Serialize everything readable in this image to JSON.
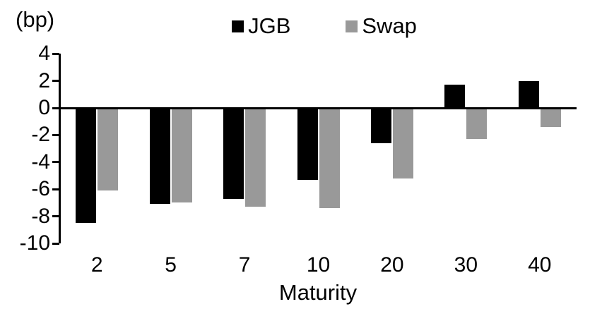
{
  "chart_data": {
    "type": "bar",
    "unit_label": "(bp)",
    "xlabel": "Maturity",
    "ylabel": "",
    "categories": [
      "2",
      "5",
      "7",
      "10",
      "20",
      "30",
      "40"
    ],
    "series": [
      {
        "name": "JGB",
        "color": "#000000",
        "values": [
          -8.5,
          -7.1,
          -6.7,
          -5.3,
          -2.6,
          1.7,
          2.0
        ]
      },
      {
        "name": "Swap",
        "color": "#999999",
        "values": [
          -6.1,
          -7.0,
          -7.3,
          -7.4,
          -5.2,
          -2.3,
          -1.4
        ]
      }
    ],
    "ylim": [
      -10,
      4
    ],
    "yticks": [
      4,
      2,
      0,
      -2,
      -4,
      -6,
      -8,
      -10
    ],
    "grid": false,
    "legend_position": "top-center",
    "background": "#ffffff"
  }
}
